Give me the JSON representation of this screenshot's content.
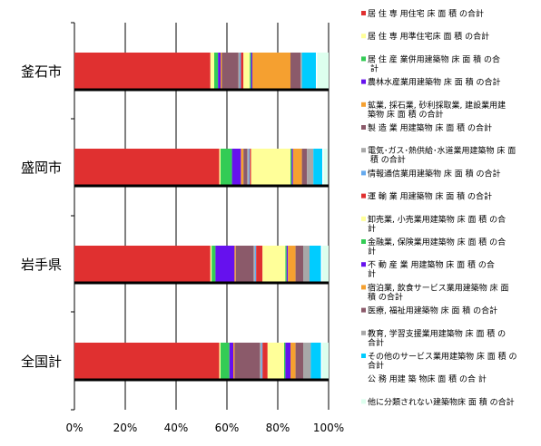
{
  "chart_data": {
    "type": "bar",
    "stacked": true,
    "orientation": "horizontal",
    "normalized_percent": true,
    "categories": [
      "釜石市",
      "盛岡市",
      "岩手県",
      "全国計"
    ],
    "xlim": [
      0,
      100
    ],
    "x_ticks": [
      "0%",
      "20%",
      "40%",
      "60%",
      "80%",
      "100%"
    ],
    "grid": "vertical",
    "legend_position": "right",
    "series": [
      {
        "name": "居 住 専 用住宅 床 面 積 の合計",
        "color": "#e03030",
        "values": [
          53.5,
          57.0,
          53.5,
          57.0
        ]
      },
      {
        "name": "居 住 専 用準住宅床 面 積 の合計",
        "color": "#ffff99",
        "values": [
          1.5,
          0.5,
          0.5,
          0.5
        ]
      },
      {
        "name": "居 住 産 業併用建築物 床 面 積 の合 計",
        "color": "#33cc55",
        "values": [
          1.5,
          4.5,
          1.5,
          3.5
        ]
      },
      {
        "name": "農林水産業用建築物 床 面 積 の合計",
        "color": "#6611ee",
        "values": [
          1.0,
          3.5,
          7.5,
          1.5
        ]
      },
      {
        "name": "鉱業, 採石業, 砂利採取業, 建設業用建築物 床 面 積 の合計",
        "color": "#f5a030",
        "values": [
          0.5,
          1.0,
          0.5,
          0.5
        ]
      },
      {
        "name": "製 造 業 用建築物 床 面 積 の合計",
        "color": "#8b5a6a",
        "values": [
          6.5,
          1.5,
          7.0,
          10.0
        ]
      },
      {
        "name": "電気･ガス･熱供給･水道業用建築物 床 面 積 の合計",
        "color": "#a8a8a8",
        "values": [
          0.5,
          0.5,
          0.5,
          0.5
        ]
      },
      {
        "name": "情報通信業用建築物 床 面 積 の合計",
        "color": "#66aaee",
        "values": [
          0.5,
          0.5,
          0.5,
          0.5
        ]
      },
      {
        "name": "運 輸 業 用建築物 床 面 積 の合計",
        "color": "#e03030",
        "values": [
          1.0,
          0.5,
          2.5,
          2.0
        ]
      },
      {
        "name": "卸売業, 小売業用建築物 床 面 積 の合計",
        "color": "#ffff99",
        "values": [
          2.5,
          15.5,
          9.0,
          6.5
        ]
      },
      {
        "name": "金融業, 保険業用建築物 床 面 積 の合計",
        "color": "#33cc55",
        "values": [
          0.5,
          0.5,
          0.5,
          0.5
        ]
      },
      {
        "name": "不 動 産 業 用建築物 床 面 積 の合計",
        "color": "#6611ee",
        "values": [
          0.5,
          0.5,
          0.5,
          2.0
        ]
      },
      {
        "name": "宿泊業, 飲食サービス業用建築物 床 面 積 の合計",
        "color": "#f5a030",
        "values": [
          15.0,
          3.5,
          3.0,
          2.0
        ]
      },
      {
        "name": "医療, 福祉用建築物 床 面 積 の合計",
        "color": "#8b5a6a",
        "values": [
          4.0,
          2.0,
          3.0,
          3.0
        ]
      },
      {
        "name": "教育, 学習支援業用建築物 床 面 積 の合計",
        "color": "#a8a8a8",
        "values": [
          0.5,
          2.5,
          2.5,
          3.0
        ]
      },
      {
        "name": "その他のサービス業用建築物 床 面 積 の合計",
        "color": "#00ccff",
        "values": [
          5.5,
          3.5,
          4.5,
          4.0
        ]
      },
      {
        "name": "公 務 用建 築 物床 面 積 の合 計",
        "color": "#ffffff",
        "values": [
          0.5,
          0.5,
          0.5,
          0.5
        ]
      },
      {
        "name": "他に分類されない建築物床 面 積 の合計",
        "color": "#ddffee",
        "values": [
          4.5,
          1.5,
          2.5,
          2.5
        ]
      }
    ]
  }
}
